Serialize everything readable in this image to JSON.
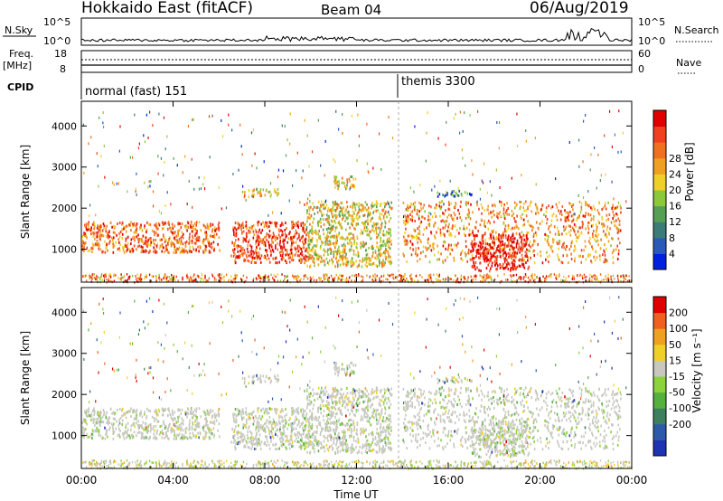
{
  "header": {
    "title": "Hokkaido East (fitACF)",
    "beam": "Beam 04",
    "date": "06/Aug/2019"
  },
  "strip_panels": {
    "nsky": {
      "label": "N.Sky",
      "left_ticks": [
        "10^5",
        "10^0"
      ],
      "right_label": "N.Search",
      "right_ticks": [
        "10^5",
        "10^0"
      ]
    },
    "freq": {
      "label": "Freq.",
      "unit": "[MHz]",
      "left_ticks": [
        "18",
        "8"
      ],
      "right_label": "Nave",
      "right_ticks": [
        "60",
        "0"
      ]
    },
    "cpid": {
      "label": "CPID",
      "segments": [
        {
          "name": "normal (fast) 151",
          "start_hour": 0
        },
        {
          "name": "themis 3300",
          "start_hour": 14
        }
      ]
    }
  },
  "chart_data": [
    {
      "type": "heatmap",
      "name": "power",
      "ylabel": "Slant Range [km]",
      "ylim": [
        200,
        4600
      ],
      "yticks": [
        1000,
        2000,
        3000,
        4000
      ],
      "xlim": [
        0,
        24
      ],
      "colorbar": {
        "label": "Power [dB]",
        "ticks": [
          "4",
          "8",
          "12",
          "16",
          "20",
          "24",
          "28"
        ],
        "colors": [
          "#0020e0",
          "#2a5ab8",
          "#3c7c78",
          "#55a055",
          "#8cc83c",
          "#f0d028",
          "#f0a020",
          "#f07020",
          "#f04020",
          "#e00000"
        ]
      },
      "scatter_bands": [
        {
          "x": [
            0,
            6
          ],
          "y": [
            950,
            1700
          ],
          "level": 0.75
        },
        {
          "x": [
            6.5,
            9.8
          ],
          "y": [
            700,
            1700
          ],
          "level": 0.85
        },
        {
          "x": [
            9.8,
            13.5
          ],
          "y": [
            600,
            2200
          ],
          "level": 0.55
        },
        {
          "x": [
            14,
            23.5
          ],
          "y": [
            700,
            2200
          ],
          "level": 0.7
        },
        {
          "x": [
            17,
            19.5
          ],
          "y": [
            500,
            1400
          ],
          "level": 0.95
        },
        {
          "x": [
            7,
            8.6
          ],
          "y": [
            2300,
            2500
          ],
          "level": 0.6
        },
        {
          "x": [
            11,
            12
          ],
          "y": [
            2500,
            2800
          ],
          "level": 0.55
        },
        {
          "x": [
            15.5,
            17
          ],
          "y": [
            2300,
            2450
          ],
          "level": 0.25
        }
      ]
    },
    {
      "type": "heatmap",
      "name": "velocity",
      "ylabel": "Slant Range [km]",
      "ylim": [
        200,
        4600
      ],
      "yticks": [
        1000,
        2000,
        3000,
        4000
      ],
      "xlim": [
        0,
        24
      ],
      "xticks": [
        "00:00",
        "04:00",
        "08:00",
        "12:00",
        "16:00",
        "20:00",
        "00:00"
      ],
      "xlabel": "Time UT",
      "colorbar": {
        "label": "Velocity [m s⁻¹]",
        "ticks": [
          "200",
          "100",
          "50",
          "15",
          "-15",
          "-50",
          "-100",
          "-200"
        ],
        "colors": [
          "#1e32b4",
          "#2d5aa8",
          "#3c8060",
          "#56b040",
          "#8cd23c",
          "#c8c8c0",
          "#f0d028",
          "#f0a020",
          "#f06020",
          "#e00000"
        ]
      }
    }
  ]
}
